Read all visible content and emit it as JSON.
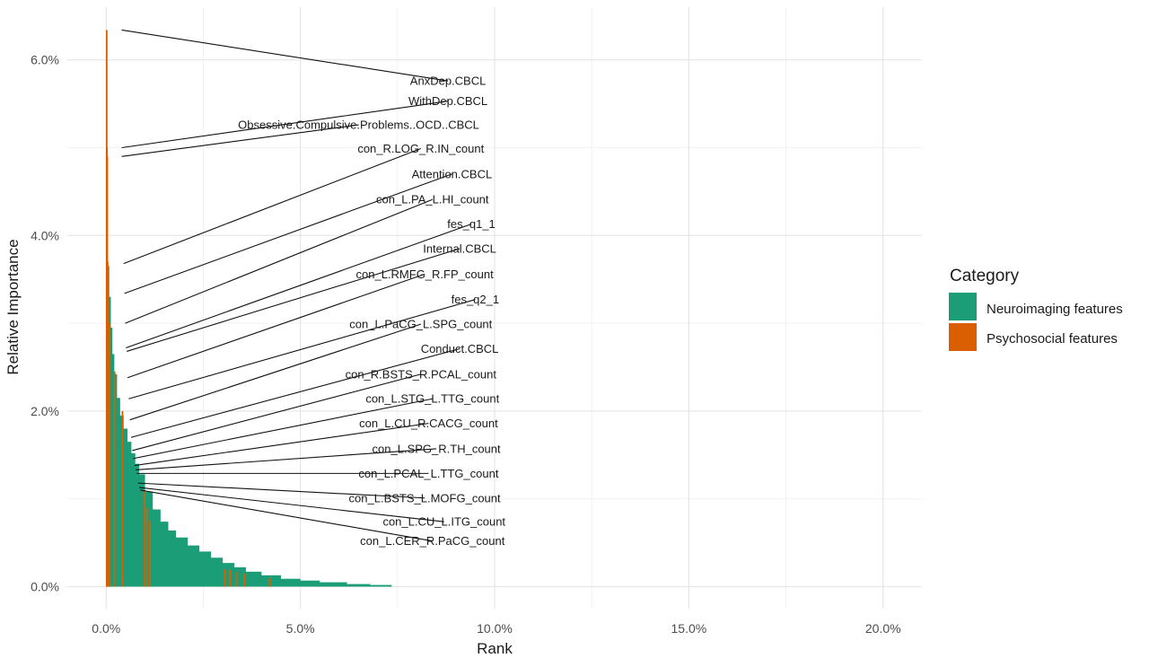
{
  "chart_data": {
    "type": "bar",
    "title": "",
    "xlabel": "Rank",
    "ylabel": "Relative Importance",
    "xlim": [
      -10,
      210
    ],
    "ylim": [
      -25,
      660
    ],
    "x_ticks": [
      {
        "value": 0,
        "label": "0.0%"
      },
      {
        "value": 50,
        "label": "5.0%"
      },
      {
        "value": 100,
        "label": "10.0%"
      },
      {
        "value": 150,
        "label": "15.0%"
      },
      {
        "value": 200,
        "label": "20.0%"
      }
    ],
    "y_ticks": [
      {
        "value": 0,
        "label": "0.0%"
      },
      {
        "value": 200,
        "label": "2.0%"
      },
      {
        "value": 400,
        "label": "4.0%"
      },
      {
        "value": 600,
        "label": "6.0%"
      }
    ],
    "grid": true,
    "legend": {
      "title": "Category",
      "placement": "right",
      "entries": [
        {
          "name": "Neuroimaging features",
          "color": "#1b9e77"
        },
        {
          "name": "Psychosocial features",
          "color": "#d95f02"
        }
      ]
    },
    "colors": {
      "neuro": "#1b9e77",
      "psycho": "#d95f02"
    },
    "psychosocial_points": [
      {
        "x": 0.05,
        "y": 634
      },
      {
        "x": 0.12,
        "y": 500
      },
      {
        "x": 0.2,
        "y": 490
      },
      {
        "x": 0.3,
        "y": 370
      },
      {
        "x": 0.42,
        "y": 334
      },
      {
        "x": 0.7,
        "y": 300
      },
      {
        "x": 2.1,
        "y": 245
      },
      {
        "x": 4.1,
        "y": 200
      },
      {
        "x": 9.8,
        "y": 110
      },
      {
        "x": 10.4,
        "y": 90
      },
      {
        "x": 11.2,
        "y": 75
      },
      {
        "x": 30.5,
        "y": 20
      },
      {
        "x": 31.8,
        "y": 19
      },
      {
        "x": 33.5,
        "y": 17
      },
      {
        "x": 35.5,
        "y": 15
      },
      {
        "x": 42.0,
        "y": 10
      }
    ],
    "neuro_curve": [
      {
        "x": 0.3,
        "y": 365
      },
      {
        "x": 0.8,
        "y": 330
      },
      {
        "x": 1.2,
        "y": 295
      },
      {
        "x": 1.6,
        "y": 265
      },
      {
        "x": 2.1,
        "y": 242
      },
      {
        "x": 2.8,
        "y": 215
      },
      {
        "x": 3.6,
        "y": 195
      },
      {
        "x": 4.5,
        "y": 180
      },
      {
        "x": 5.5,
        "y": 165
      },
      {
        "x": 6.5,
        "y": 152
      },
      {
        "x": 7.5,
        "y": 140
      },
      {
        "x": 8.5,
        "y": 128
      },
      {
        "x": 10,
        "y": 108
      },
      {
        "x": 12,
        "y": 88
      },
      {
        "x": 14,
        "y": 74
      },
      {
        "x": 16,
        "y": 64
      },
      {
        "x": 18,
        "y": 56
      },
      {
        "x": 21,
        "y": 47
      },
      {
        "x": 24,
        "y": 40
      },
      {
        "x": 27,
        "y": 33
      },
      {
        "x": 30,
        "y": 27
      },
      {
        "x": 33,
        "y": 22
      },
      {
        "x": 36,
        "y": 17
      },
      {
        "x": 40,
        "y": 13
      },
      {
        "x": 45,
        "y": 9
      },
      {
        "x": 50,
        "y": 7
      },
      {
        "x": 55,
        "y": 5
      },
      {
        "x": 62,
        "y": 3
      },
      {
        "x": 68,
        "y": 2
      },
      {
        "x": 73.5,
        "y": 1
      }
    ],
    "annotations": [
      {
        "label": "AnxDep.CBCL",
        "point": [
          4,
          634
        ],
        "text_at": [
          88,
          576
        ]
      },
      {
        "label": "WithDep.CBCL",
        "point": [
          4,
          500
        ],
        "text_at": [
          88,
          553
        ]
      },
      {
        "label": "Obsessive.Compulsive.Problems..OCD..CBCL",
        "point": [
          4,
          490
        ],
        "text_at": [
          65,
          526
        ]
      },
      {
        "label": "con_R.LOG_R.IN_count",
        "point": [
          4.5,
          368
        ],
        "text_at": [
          81,
          499
        ]
      },
      {
        "label": "Attention.CBCL",
        "point": [
          4.7,
          334
        ],
        "text_at": [
          89,
          470
        ]
      },
      {
        "label": "con_L.PA_L.HI_count",
        "point": [
          4.9,
          300
        ],
        "text_at": [
          84,
          441
        ]
      },
      {
        "label": "fes_q1_1",
        "point": [
          5.1,
          272
        ],
        "text_at": [
          94,
          413
        ]
      },
      {
        "label": "Internal.CBCL",
        "point": [
          5.3,
          268
        ],
        "text_at": [
          91,
          385
        ]
      },
      {
        "label": "con_L.RMFG_R.FP_count",
        "point": [
          5.5,
          238
        ],
        "text_at": [
          82,
          356
        ]
      },
      {
        "label": "fes_q2_1",
        "point": [
          5.8,
          214
        ],
        "text_at": [
          95,
          327
        ]
      },
      {
        "label": "con_L.PaCG_L.SPG_count",
        "point": [
          6.1,
          190
        ],
        "text_at": [
          81,
          299
        ]
      },
      {
        "label": "Conduct.CBCL",
        "point": [
          6.4,
          170
        ],
        "text_at": [
          91,
          271
        ]
      },
      {
        "label": "con_R.BSTS_R.PCAL_count",
        "point": [
          6.7,
          155
        ],
        "text_at": [
          81,
          242
        ]
      },
      {
        "label": "con_L.STG_L.TTG_count",
        "point": [
          7.0,
          146
        ],
        "text_at": [
          84,
          214
        ]
      },
      {
        "label": "con_L.CU_R.CACG_count",
        "point": [
          7.3,
          138
        ],
        "text_at": [
          83,
          186
        ]
      },
      {
        "label": "con_L.SPG_R.TH_count",
        "point": [
          7.6,
          133
        ],
        "text_at": [
          85,
          157
        ]
      },
      {
        "label": "con_L.PCAL_L.TTG_count",
        "point": [
          7.9,
          129
        ],
        "text_at": [
          83,
          129
        ]
      },
      {
        "label": "con_L.BSTS_L.MOFG_count",
        "point": [
          8.2,
          118
        ],
        "text_at": [
          82,
          101
        ]
      },
      {
        "label": "con_L.CU_L.ITG_count",
        "point": [
          8.5,
          113
        ],
        "text_at": [
          87,
          74
        ]
      },
      {
        "label": "con_L.CER_R.PaCG_count",
        "point": [
          8.8,
          110
        ],
        "text_at": [
          84,
          52
        ]
      }
    ]
  }
}
